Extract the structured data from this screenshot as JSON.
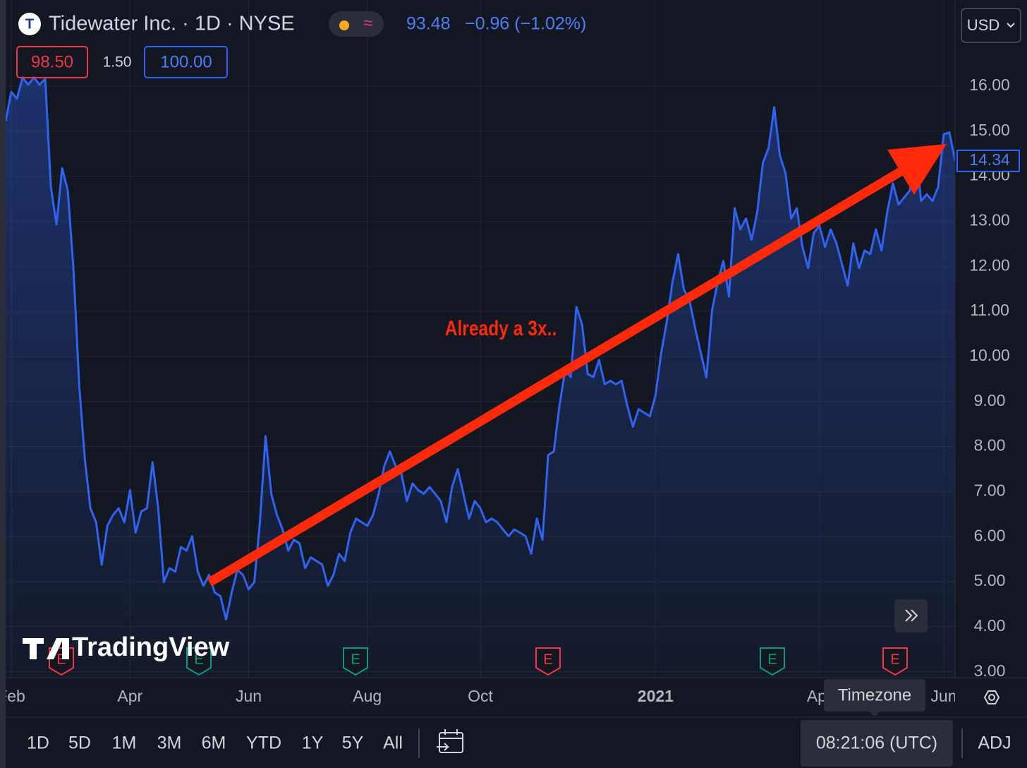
{
  "header": {
    "symbol_title": "Tidewater Inc. · 1D · NYSE",
    "price": "93.48",
    "change": "−0.96 (−1.02%)",
    "currency": "USD",
    "bid": "98.50",
    "spread": "1.50",
    "ask": "100.00"
  },
  "chart_data": {
    "type": "area",
    "color": "#2f63f2",
    "values": [
      15.22,
      15.87,
      15.72,
      16.19,
      16.03,
      16.19,
      16.03,
      16.16,
      13.76,
      12.93,
      14.18,
      13.68,
      11.96,
      9.38,
      7.73,
      6.63,
      6.32,
      5.38,
      6.24,
      6.48,
      6.63,
      6.32,
      7.03,
      6.09,
      6.56,
      6.63,
      7.65,
      6.63,
      4.99,
      5.3,
      5.22,
      5.77,
      5.69,
      6.01,
      5.22,
      4.91,
      5.15,
      4.76,
      4.68,
      4.16,
      4.76,
      5.26,
      5.15,
      4.83,
      4.99,
      6.32,
      8.23,
      6.95,
      6.48,
      6.16,
      5.69,
      5.93,
      5.85,
      5.3,
      5.54,
      5.46,
      5.38,
      4.91,
      5.15,
      5.62,
      5.46,
      6.09,
      6.4,
      6.32,
      6.24,
      6.48,
      6.95,
      7.57,
      7.89,
      7.57,
      7.42,
      6.79,
      7.18,
      7.03,
      6.95,
      7.1,
      6.95,
      6.79,
      6.32,
      7.1,
      7.5,
      6.95,
      6.4,
      6.79,
      6.63,
      6.32,
      6.4,
      6.32,
      6.16,
      6.01,
      6.16,
      6.09,
      6.01,
      5.62,
      6.4,
      5.93,
      7.81,
      7.89,
      8.91,
      9.69,
      9.54,
      11.1,
      10.71,
      9.61,
      9.54,
      9.92,
      9.38,
      9.46,
      9.38,
      9.46,
      8.91,
      8.44,
      8.83,
      8.75,
      8.67,
      9.14,
      10.08,
      10.78,
      11.65,
      12.27,
      11.49,
      11.25,
      10.63,
      10.08,
      9.53,
      11.02,
      11.65,
      12.12,
      11.33,
      13.29,
      12.82,
      13.06,
      12.59,
      13.21,
      14.3,
      14.62,
      15.53,
      14.46,
      14.07,
      13.06,
      13.29,
      12.43,
      11.96,
      12.74,
      12.9,
      12.43,
      12.82,
      12.51,
      12.04,
      11.57,
      12.51,
      11.96,
      12.35,
      12.27,
      12.82,
      12.35,
      13.21,
      13.84,
      13.37,
      13.53,
      13.68,
      14.62,
      13.45,
      13.6,
      13.45,
      13.76,
      14.93,
      14.97,
      14.34
    ],
    "xlim": [
      0,
      168
    ],
    "xticks": [
      {
        "value": 1,
        "label": "Feb"
      },
      {
        "value": 22,
        "label": "Apr"
      },
      {
        "value": 43,
        "label": "Jun"
      },
      {
        "value": 64,
        "label": "Aug"
      },
      {
        "value": 84,
        "label": "Oct"
      },
      {
        "value": 115,
        "label": "2021"
      },
      {
        "value": 144,
        "label": "Apr"
      },
      {
        "value": 166,
        "label": "Jun"
      }
    ],
    "ylim": [
      2.87,
      16.97
    ],
    "yticks": [
      {
        "value": 3,
        "label": "3.00"
      },
      {
        "value": 4,
        "label": "4.00"
      },
      {
        "value": 5,
        "label": "5.00"
      },
      {
        "value": 6,
        "label": "6.00"
      },
      {
        "value": 7,
        "label": "7.00"
      },
      {
        "value": 8,
        "label": "8.00"
      },
      {
        "value": 9,
        "label": "9.00"
      },
      {
        "value": 10,
        "label": "10.00"
      },
      {
        "value": 11,
        "label": "11.00"
      },
      {
        "value": 12,
        "label": "12.00"
      },
      {
        "value": 13,
        "label": "13.00"
      },
      {
        "value": 14,
        "label": "14.00"
      },
      {
        "value": 15,
        "label": "15.00"
      },
      {
        "value": 16,
        "label": "16.00"
      }
    ],
    "grid": true,
    "last_price": {
      "value": 14.34,
      "label": "14.34"
    },
    "annotation": "Already a 3x.."
  },
  "earnings": [
    "E",
    "E",
    "E",
    "E",
    "E",
    "E"
  ],
  "watermark": "TradingView",
  "ranges": [
    "1D",
    "5D",
    "1M",
    "3M",
    "6M",
    "YTD",
    "1Y",
    "5Y",
    "All"
  ],
  "tooltip": "Timezone",
  "clock": "08:21:06 (UTC)",
  "adj": "ADJ"
}
